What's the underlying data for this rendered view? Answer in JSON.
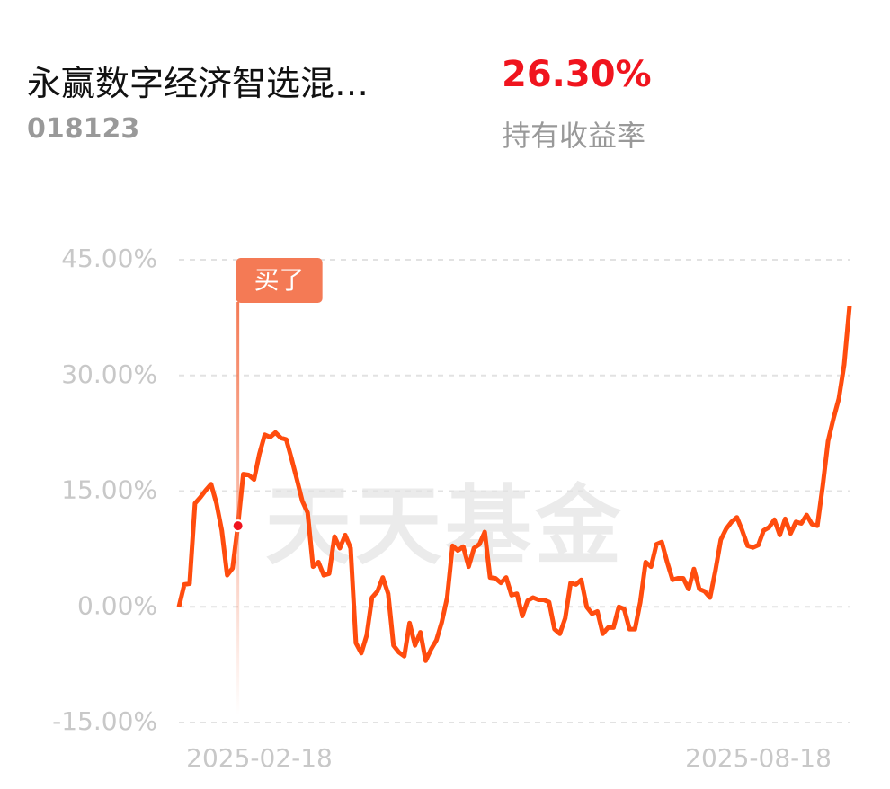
{
  "header": {
    "name": "永赢数字经济智选混…",
    "code": "018123",
    "return": "26.30%",
    "return_label": "持有收益率"
  },
  "chart_data": {
    "type": "line",
    "watermark": "天天基金",
    "annotation": "买了",
    "categories": [
      null,
      null,
      null,
      null,
      null,
      null,
      null,
      null,
      null,
      null,
      null,
      null,
      null,
      null,
      null,
      "2025-02-18",
      null,
      null,
      null,
      null,
      null,
      null,
      null,
      null,
      null,
      null,
      null,
      null,
      null,
      null,
      null,
      null,
      null,
      null,
      null,
      null,
      null,
      null,
      null,
      null,
      null,
      null,
      null,
      null,
      null,
      null,
      null,
      null,
      null,
      null,
      null,
      null,
      null,
      null,
      null,
      null,
      null,
      null,
      null,
      null,
      null,
      null,
      null,
      null,
      null,
      null,
      null,
      null,
      null,
      null,
      null,
      null,
      null,
      null,
      null,
      null,
      null,
      null,
      null,
      null,
      null,
      null,
      null,
      null,
      null,
      null,
      null,
      null,
      null,
      null,
      null,
      null,
      null,
      null,
      null,
      null,
      null,
      null,
      null,
      null,
      null,
      null,
      null,
      null,
      null,
      null,
      null,
      null,
      "2025-08-18",
      null,
      null,
      null,
      null,
      null,
      null,
      null,
      null,
      null,
      null,
      null,
      null,
      null,
      null,
      null,
      null,
      null
    ],
    "series": [
      {
        "color": "#ff4c0e",
        "values": [
          0,
          2.9,
          3.0,
          13.4,
          14.2,
          15.1,
          15.9,
          13.4,
          9.9,
          4.1,
          5.0,
          10.5,
          17.2,
          17.1,
          16.5,
          19.8,
          22.3,
          22.0,
          22.6,
          21.9,
          21.7,
          19.2,
          16.5,
          13.7,
          12.2,
          5.2,
          5.8,
          4.1,
          4.3,
          9.1,
          7.6,
          9.3,
          7.6,
          -4.7,
          -6.0,
          -3.7,
          1.2,
          2.0,
          3.8,
          1.7,
          -5.0,
          -5.9,
          -6.4,
          -2.1,
          -5.0,
          -3.3,
          -7.0,
          -5.5,
          -4.3,
          -2.0,
          1.2,
          7.9,
          7.3,
          7.8,
          5.2,
          7.6,
          8.1,
          9.7,
          3.8,
          3.7,
          3.1,
          3.8,
          1.5,
          1.7,
          -1.2,
          0.8,
          1.2,
          0.9,
          0.9,
          0.6,
          -2.9,
          -3.5,
          -1.5,
          3.1,
          2.9,
          3.5,
          0,
          -0.9,
          -0.6,
          -3.5,
          -2.7,
          -2.7,
          0,
          -0.3,
          -2.9,
          -2.9,
          0.6,
          5.8,
          5.2,
          8.1,
          8.4,
          5.8,
          3.5,
          3.7,
          3.7,
          2.3,
          4.9,
          2.3,
          2.0,
          1.2,
          4.7,
          8.7,
          10.1,
          11.0,
          11.6,
          9.9,
          7.9,
          7.7,
          8.0,
          9.9,
          10.3,
          11.3,
          9.3,
          11.4,
          9.5,
          11.0,
          10.8,
          11.9,
          10.7,
          10.5,
          15.7,
          21.5,
          24.4,
          27.0,
          31.4,
          39.0
        ]
      }
    ],
    "ylim": [
      -15,
      45
    ],
    "yticks": [
      {
        "value": -15,
        "label": "-15.00%"
      },
      {
        "value": 0,
        "label": "0.00%"
      },
      {
        "value": 15,
        "label": "15.00%"
      },
      {
        "value": 30,
        "label": "30.00%"
      },
      {
        "value": 45,
        "label": "45.00%"
      }
    ],
    "grid": true
  }
}
